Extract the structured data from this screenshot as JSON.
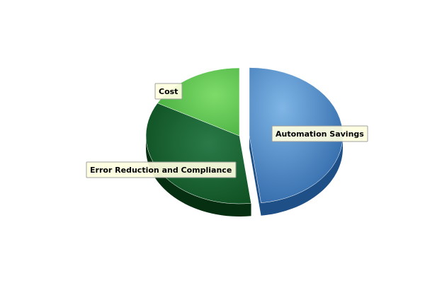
{
  "chart_data": {
    "type": "pie",
    "title": "",
    "slices": [
      {
        "label": "Automation Savings",
        "value": 48,
        "color": "#4a86c4",
        "exploded": true
      },
      {
        "label": "Error Reduction and Compliance",
        "value": 35,
        "color": "#1f6b33",
        "exploded": false
      },
      {
        "label": "Cost",
        "value": 17,
        "color": "#5fc653",
        "exploded": false
      }
    ],
    "style": "3d",
    "legend": "none",
    "labels": "callout-boxes"
  }
}
